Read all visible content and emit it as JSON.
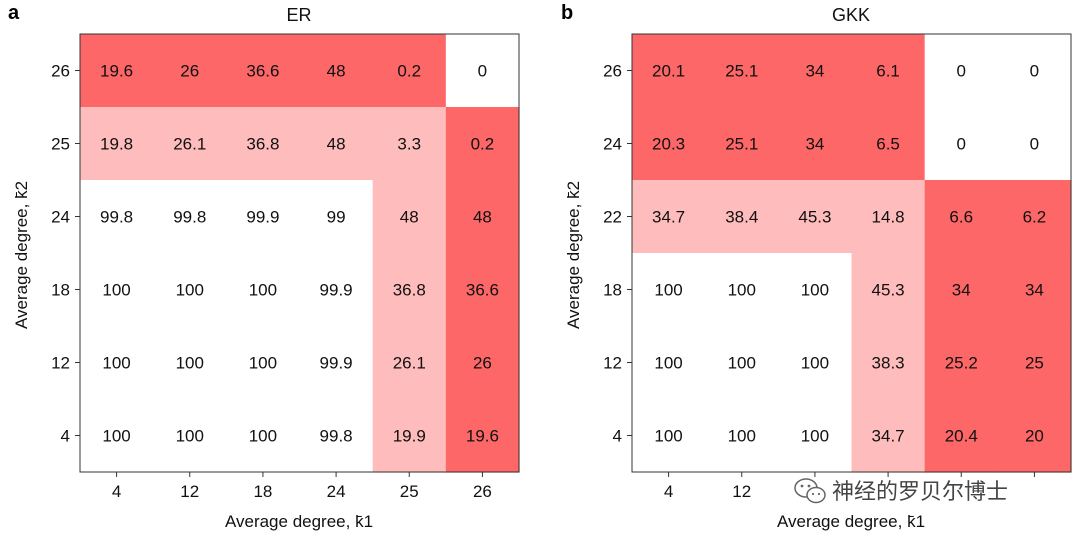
{
  "watermark": {
    "text": "神经的罗贝尔博士",
    "icon": "wechat-icon"
  },
  "colors": {
    "dark": "#fd6767",
    "light": "#ffbcbc",
    "white": "#ffffff"
  },
  "chart_data": [
    {
      "type": "heatmap",
      "panel": "a",
      "title": "ER",
      "xlabel": "Average degree, k̄1",
      "ylabel": "Average degree, k̄2",
      "x_ticks": [
        "4",
        "12",
        "18",
        "24",
        "25",
        "26"
      ],
      "y_ticks": [
        "26",
        "25",
        "24",
        "18",
        "12",
        "4"
      ],
      "values": [
        [
          "19.6",
          "26",
          "36.6",
          "48",
          "0.2",
          "0"
        ],
        [
          "19.8",
          "26.1",
          "36.8",
          "48",
          "3.3",
          "0.2"
        ],
        [
          "99.8",
          "99.8",
          "99.9",
          "99",
          "48",
          "48"
        ],
        [
          "100",
          "100",
          "100",
          "99.9",
          "36.8",
          "36.6"
        ],
        [
          "100",
          "100",
          "100",
          "99.9",
          "26.1",
          "26"
        ],
        [
          "100",
          "100",
          "100",
          "99.8",
          "19.9",
          "19.6"
        ]
      ],
      "shading": [
        [
          "dark",
          "dark",
          "dark",
          "dark",
          "dark",
          "white"
        ],
        [
          "light",
          "light",
          "light",
          "light",
          "light",
          "dark"
        ],
        [
          "white",
          "white",
          "white",
          "white",
          "light",
          "dark"
        ],
        [
          "white",
          "white",
          "white",
          "white",
          "light",
          "dark"
        ],
        [
          "white",
          "white",
          "white",
          "white",
          "light",
          "dark"
        ],
        [
          "white",
          "white",
          "white",
          "white",
          "light",
          "dark"
        ]
      ]
    },
    {
      "type": "heatmap",
      "panel": "b",
      "title": "GKK",
      "xlabel": "Average degree, k̄1",
      "ylabel": "Average degree, k̄2",
      "x_ticks": [
        "4",
        "12",
        "",
        "",
        "",
        ""
      ],
      "y_ticks": [
        "26",
        "24",
        "22",
        "18",
        "12",
        "4"
      ],
      "values": [
        [
          "20.1",
          "25.1",
          "34",
          "6.1",
          "0",
          "0"
        ],
        [
          "20.3",
          "25.1",
          "34",
          "6.5",
          "0",
          "0"
        ],
        [
          "34.7",
          "38.4",
          "45.3",
          "14.8",
          "6.6",
          "6.2"
        ],
        [
          "100",
          "100",
          "100",
          "45.3",
          "34",
          "34"
        ],
        [
          "100",
          "100",
          "100",
          "38.3",
          "25.2",
          "25"
        ],
        [
          "100",
          "100",
          "100",
          "34.7",
          "20.4",
          "20"
        ]
      ],
      "shading": [
        [
          "dark",
          "dark",
          "dark",
          "dark",
          "white",
          "white"
        ],
        [
          "dark",
          "dark",
          "dark",
          "dark",
          "white",
          "white"
        ],
        [
          "light",
          "light",
          "light",
          "light",
          "dark",
          "dark"
        ],
        [
          "white",
          "white",
          "white",
          "light",
          "dark",
          "dark"
        ],
        [
          "white",
          "white",
          "white",
          "light",
          "dark",
          "dark"
        ],
        [
          "white",
          "white",
          "white",
          "light",
          "dark",
          "dark"
        ]
      ]
    }
  ]
}
